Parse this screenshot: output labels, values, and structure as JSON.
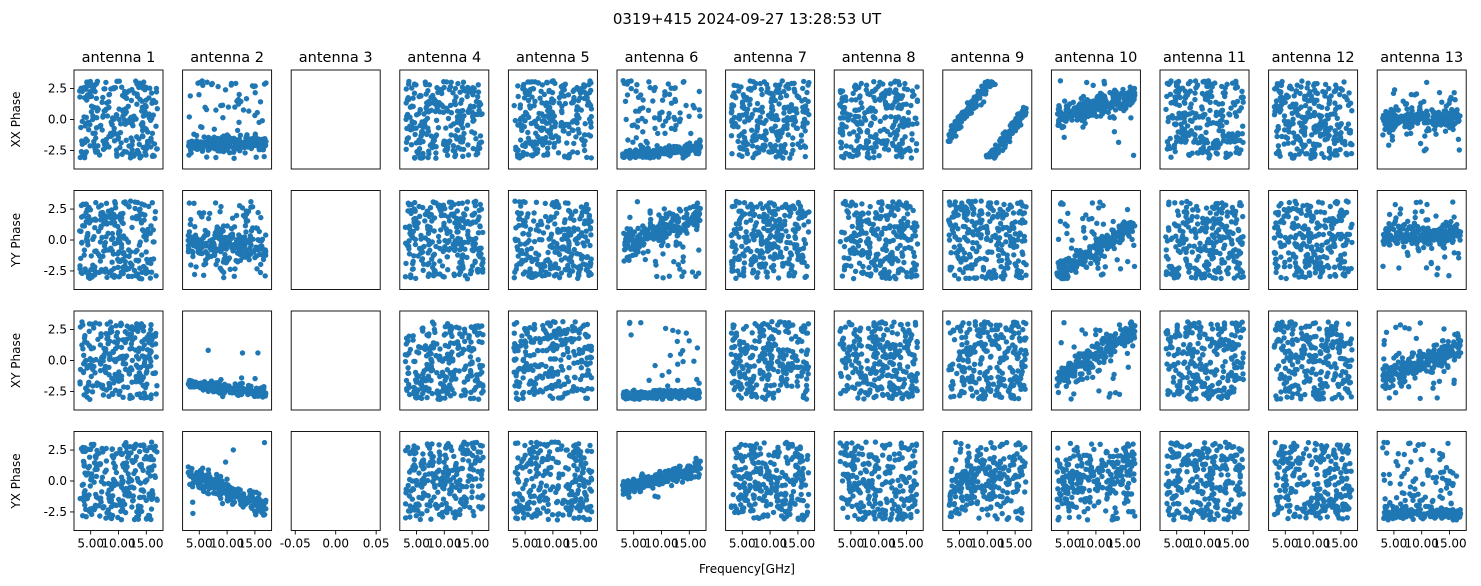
{
  "chart_data": {
    "type": "scatter",
    "title": "0319+415 2024-09-27 13:28:53 UT",
    "xlabel": "Frequency[GHz]",
    "marker_color": "#1f77b4",
    "ylim": [
      -4,
      4
    ],
    "yticks": [
      2.5,
      0.0,
      -2.5
    ],
    "ytick_labels": [
      "2.5",
      "0.0",
      "-2.5"
    ],
    "xlim": [
      2.0,
      18.0
    ],
    "xticks": [
      5.0,
      10.0,
      15.0
    ],
    "xtick_labels": [
      "5.00",
      "10.00",
      "15.00"
    ],
    "empty_xlim": [
      -0.055,
      0.055
    ],
    "empty_xticks": [
      -0.05,
      0.0,
      0.05
    ],
    "empty_xtick_labels": [
      "-0.05",
      "0.00",
      "0.05"
    ],
    "rows": [
      "XX Phase",
      "YY Phase",
      "XY Phase",
      "YX Phase"
    ],
    "antennas": [
      "antenna 1",
      "antenna 2",
      "antenna 3",
      "antenna 4",
      "antenna 5",
      "antenna 6",
      "antenna 7",
      "antenna 8",
      "antenna 9",
      "antenna 10",
      "antenna 11",
      "antenna 12",
      "antenna 13"
    ],
    "empty_antenna_index": 2,
    "points_per_panel": 260,
    "freq_range": [
      3.0,
      17.0
    ],
    "patterns": [
      [
        {
          "type": "bands",
          "slope": 0.55,
          "noise": 0.35
        },
        {
          "type": "cluster",
          "base": -2.0,
          "slope": 0.0,
          "noise": 0.3,
          "scatter_frac": 0.3
        },
        {
          "type": "none"
        },
        {
          "type": "bands",
          "slope": 1.1,
          "noise": 0.3
        },
        {
          "type": "random"
        },
        {
          "type": "edge",
          "base": -2.9,
          "slope": 0.04,
          "noise": 0.2,
          "scatter_frac": 0.35
        },
        {
          "type": "random"
        },
        {
          "type": "bands",
          "slope": 1.4,
          "noise": 0.3
        },
        {
          "type": "wrap",
          "base": -1.4,
          "slope": 0.6,
          "noise": 0.35
        },
        {
          "type": "cluster",
          "base": 0.0,
          "slope": 0.14,
          "noise": 0.45,
          "scatter_frac": 0.08
        },
        {
          "type": "random"
        },
        {
          "type": "random"
        },
        {
          "type": "cluster",
          "base": -0.1,
          "slope": 0.02,
          "noise": 0.45,
          "scatter_frac": 0.1
        }
      ],
      [
        {
          "type": "random"
        },
        {
          "type": "cluster",
          "base": 0.0,
          "slope": -0.05,
          "noise": 0.6,
          "scatter_frac": 0.35
        },
        {
          "type": "none"
        },
        {
          "type": "bands",
          "slope": 1.1,
          "noise": 0.3
        },
        {
          "type": "bands",
          "slope": 1.0,
          "noise": 0.35
        },
        {
          "type": "cluster",
          "base": -0.3,
          "slope": 0.16,
          "noise": 0.55,
          "scatter_frac": 0.2
        },
        {
          "type": "random"
        },
        {
          "type": "random"
        },
        {
          "type": "random"
        },
        {
          "type": "cluster",
          "base": -2.9,
          "slope": 0.3,
          "noise": 0.45,
          "scatter_frac": 0.25
        },
        {
          "type": "random"
        },
        {
          "type": "random"
        },
        {
          "type": "cluster",
          "base": 0.4,
          "slope": 0.0,
          "noise": 0.45,
          "scatter_frac": 0.2
        }
      ],
      [
        {
          "type": "bands",
          "slope": 0.8,
          "noise": 0.3
        },
        {
          "type": "cluster",
          "base": -1.9,
          "slope": -0.05,
          "noise": 0.2,
          "scatter_frac": 0.04
        },
        {
          "type": "none"
        },
        {
          "type": "bands",
          "slope": 1.2,
          "noise": 0.25
        },
        {
          "type": "bands",
          "slope": 0.15,
          "noise": 0.2
        },
        {
          "type": "edge",
          "base": -2.9,
          "slope": 0.02,
          "noise": 0.18,
          "scatter_frac": 0.12
        },
        {
          "type": "random"
        },
        {
          "type": "bands",
          "slope": 1.3,
          "noise": 0.3
        },
        {
          "type": "random"
        },
        {
          "type": "cluster",
          "base": -1.6,
          "slope": 0.3,
          "noise": 0.5,
          "scatter_frac": 0.1
        },
        {
          "type": "random"
        },
        {
          "type": "bands",
          "slope": 1.4,
          "noise": 0.3
        },
        {
          "type": "cluster",
          "base": -1.2,
          "slope": 0.16,
          "noise": 0.6,
          "scatter_frac": 0.15
        }
      ],
      [
        {
          "type": "bands",
          "slope": 0.7,
          "noise": 0.35
        },
        {
          "type": "cluster",
          "base": 0.6,
          "slope": -0.2,
          "noise": 0.4,
          "scatter_frac": 0.08
        },
        {
          "type": "none"
        },
        {
          "type": "bands",
          "slope": 1.2,
          "noise": 0.3
        },
        {
          "type": "bands",
          "slope": 1.0,
          "noise": 0.3
        },
        {
          "type": "cluster",
          "base": -0.6,
          "slope": 0.12,
          "noise": 0.3,
          "scatter_frac": 0.02
        },
        {
          "type": "random"
        },
        {
          "type": "bands",
          "slope": 1.5,
          "noise": 0.3
        },
        {
          "type": "cluster",
          "base": -0.8,
          "slope": 0.15,
          "noise": 1.3,
          "scatter_frac": 0.3
        },
        {
          "type": "cluster",
          "base": -0.3,
          "slope": 0.12,
          "noise": 1.1,
          "scatter_frac": 0.3
        },
        {
          "type": "random"
        },
        {
          "type": "bands",
          "slope": 1.2,
          "noise": 0.35
        },
        {
          "type": "edge",
          "base": -2.6,
          "slope": 0.0,
          "noise": 0.25,
          "scatter_frac": 0.35
        }
      ]
    ]
  }
}
